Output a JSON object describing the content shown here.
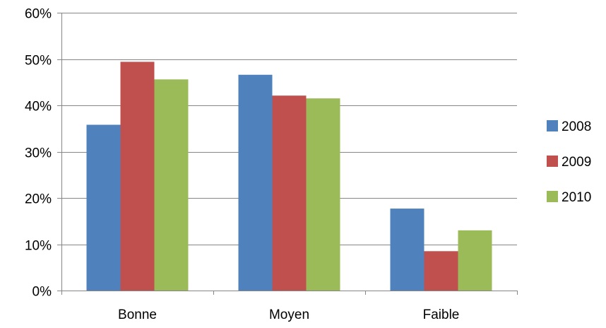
{
  "chart_data": {
    "type": "bar",
    "title": "",
    "xlabel": "",
    "ylabel": "",
    "categories": [
      "Bonne",
      "Moyen",
      "Faible"
    ],
    "series": [
      {
        "name": "2008",
        "values": [
          35.8,
          46.6,
          17.7
        ],
        "color": "#4F81BD"
      },
      {
        "name": "2009",
        "values": [
          49.4,
          42.1,
          8.5
        ],
        "color": "#C0504D"
      },
      {
        "name": "2010",
        "values": [
          45.6,
          41.5,
          13.0
        ],
        "color": "#9BBB59"
      }
    ],
    "ylim": [
      0,
      60
    ],
    "yticks": [
      0,
      10,
      20,
      30,
      40,
      50,
      60
    ],
    "ytick_labels": [
      "0%",
      "10%",
      "20%",
      "30%",
      "40%",
      "50%",
      "60%"
    ],
    "grid": true,
    "legend": "right"
  }
}
